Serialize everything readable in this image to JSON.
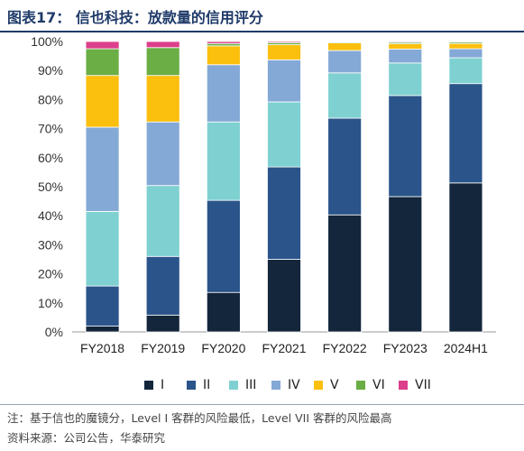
{
  "header": {
    "title": "图表17：  信也科技：放款量的信用评分"
  },
  "colors": {
    "I": "#13263b",
    "II": "#2a548a",
    "III": "#7fd1d1",
    "IV": "#85a9d6",
    "V": "#fbbf0e",
    "VI": "#6aae45",
    "VII": "#dc3f8b"
  },
  "chart_data": {
    "type": "bar",
    "stacked": true,
    "categories": [
      "FY2018",
      "FY2019",
      "FY2020",
      "FY2021",
      "FY2022",
      "FY2023",
      "2024H1"
    ],
    "y_ticks": [
      "0%",
      "10%",
      "20%",
      "30%",
      "40%",
      "50%",
      "60%",
      "70%",
      "80%",
      "90%",
      "100%"
    ],
    "ylim": [
      0,
      100
    ],
    "y_unit": "%",
    "grid": false,
    "legend_position": "bottom",
    "series": [
      {
        "name": "I",
        "values": [
          2.0,
          5.8,
          13.6,
          25.0,
          40.3,
          46.6,
          51.3
        ]
      },
      {
        "name": "II",
        "values": [
          13.8,
          20.2,
          31.7,
          31.8,
          33.3,
          34.8,
          34.2
        ]
      },
      {
        "name": "III",
        "values": [
          25.7,
          24.4,
          27.0,
          22.4,
          15.6,
          11.2,
          8.9
        ]
      },
      {
        "name": "IV",
        "values": [
          29.0,
          21.9,
          19.7,
          14.5,
          7.7,
          4.8,
          3.1
        ]
      },
      {
        "name": "V",
        "values": [
          17.8,
          16.0,
          6.5,
          5.2,
          2.6,
          1.8,
          1.8
        ]
      },
      {
        "name": "VI",
        "values": [
          9.2,
          9.6,
          0.8,
          0.7,
          0.3,
          0.5,
          0.5
        ]
      },
      {
        "name": "VII",
        "values": [
          2.5,
          2.1,
          0.7,
          0.4,
          0.2,
          0.3,
          0.2
        ]
      }
    ]
  },
  "footnote": {
    "line1": "注：基于信也的魔镜分，Level I 客群的风险最低，Level VII 客群的风险最高",
    "line2": "资料来源：公司公告，华泰研究"
  }
}
